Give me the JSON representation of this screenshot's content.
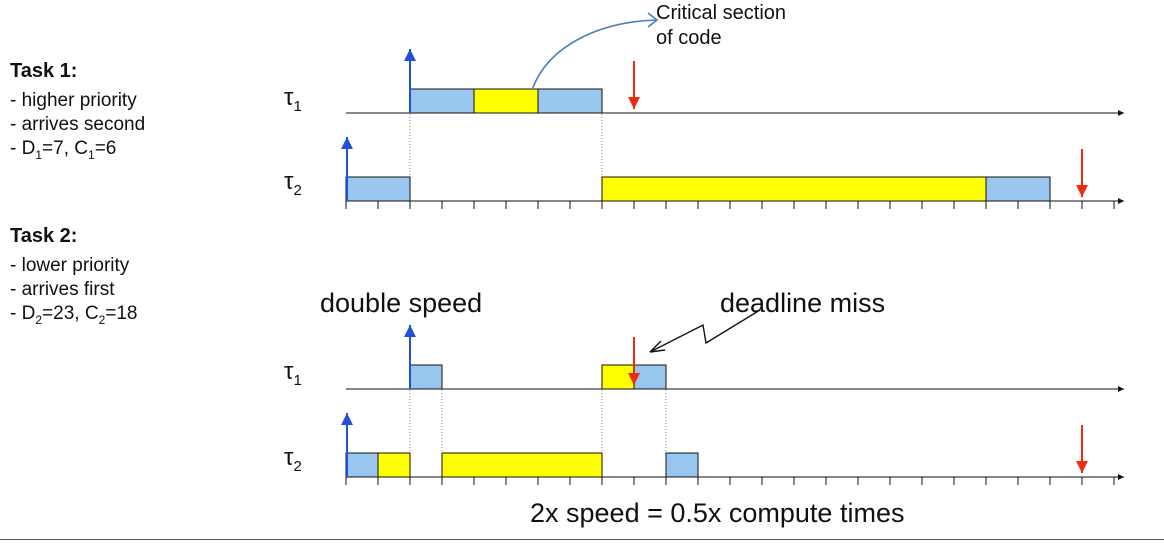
{
  "tasks": [
    {
      "title": "Task 1:",
      "lines": [
        "- higher priority",
        "- arrives second"
      ],
      "params": {
        "d_sym": "D",
        "d_sub": "1",
        "d_val": "=7",
        "c_sym": "C",
        "c_sub": "1",
        "c_val": "=6",
        "sep": ", ",
        "prefix": "- "
      }
    },
    {
      "title": "Task 2:",
      "lines": [
        "- lower priority",
        "- arrives first"
      ],
      "params": {
        "d_sym": "D",
        "d_sub": "2",
        "d_val": "=23",
        "c_sym": "C",
        "c_sub": "2",
        "c_val": "=18",
        "sep": ", ",
        "prefix": "- "
      }
    }
  ],
  "labels": {
    "critical_1": "Critical section",
    "critical_2": "of code",
    "double_speed": "double speed",
    "deadline_miss": "deadline miss",
    "footer": "2x speed = 0.5x compute times"
  },
  "timelines": {
    "tau1_sym": "τ",
    "tau1_sub": "1",
    "tau2_sym": "τ",
    "tau2_sub": "2"
  },
  "colors": {
    "normal": "#99c6ee",
    "critical": "#ffff00",
    "release": "#2350d8",
    "deadline": "#ee2a10",
    "annotation": "#4a7fb8"
  },
  "schedule": {
    "top": {
      "tau1": [
        {
          "start": 2,
          "end": 4,
          "kind": "normal"
        },
        {
          "start": 4,
          "end": 6,
          "kind": "critical"
        },
        {
          "start": 6,
          "end": 8,
          "kind": "normal"
        }
      ],
      "tau2": [
        {
          "start": 0,
          "end": 2,
          "kind": "normal"
        },
        {
          "start": 8,
          "end": 20,
          "kind": "critical"
        },
        {
          "start": 20,
          "end": 22,
          "kind": "normal"
        }
      ],
      "tau1_release": 2,
      "tau1_deadline": 9,
      "tau2_release": 0,
      "tau2_deadline": 23
    },
    "bottom": {
      "tau1": [
        {
          "start": 2,
          "end": 3,
          "kind": "normal"
        },
        {
          "start": 8,
          "end": 9,
          "kind": "critical"
        },
        {
          "start": 9,
          "end": 10,
          "kind": "normal"
        }
      ],
      "tau2": [
        {
          "start": 0,
          "end": 1,
          "kind": "normal"
        },
        {
          "start": 1,
          "end": 2,
          "kind": "critical"
        },
        {
          "start": 3,
          "end": 8,
          "kind": "critical"
        },
        {
          "start": 10,
          "end": 11,
          "kind": "normal"
        }
      ],
      "tau1_release": 2,
      "tau1_deadline": 9,
      "tau2_release": 0,
      "tau2_deadline": 23
    },
    "ticks": 24
  }
}
